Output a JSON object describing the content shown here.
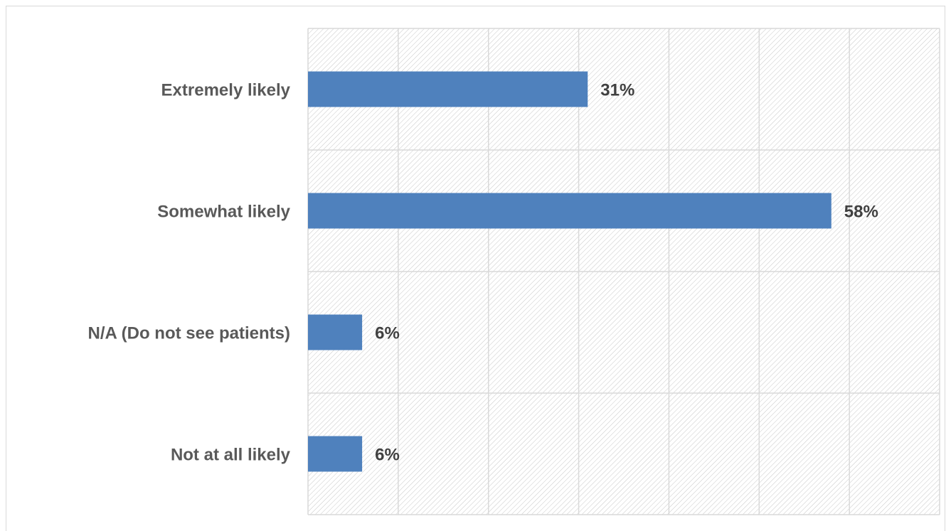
{
  "chart_data": {
    "type": "bar",
    "orientation": "horizontal",
    "title": "",
    "xlabel": "",
    "ylabel": "",
    "categories": [
      "Extremely likely",
      "Somewhat likely",
      "N/A (Do not see patients)",
      "Not at all likely"
    ],
    "values": [
      31,
      58,
      6,
      6
    ],
    "value_labels": [
      "31%",
      "58%",
      "6%",
      "6%"
    ],
    "xlim": [
      0,
      70
    ],
    "x_gridline_step": 10,
    "grid": true,
    "plot_background": "hatched",
    "legend": "none",
    "colors": {
      "bar": "#4f81bd",
      "grid": "#d9d9d9",
      "hatch": "#c8c8c8",
      "category_text": "#595959",
      "value_text": "#404040"
    }
  }
}
